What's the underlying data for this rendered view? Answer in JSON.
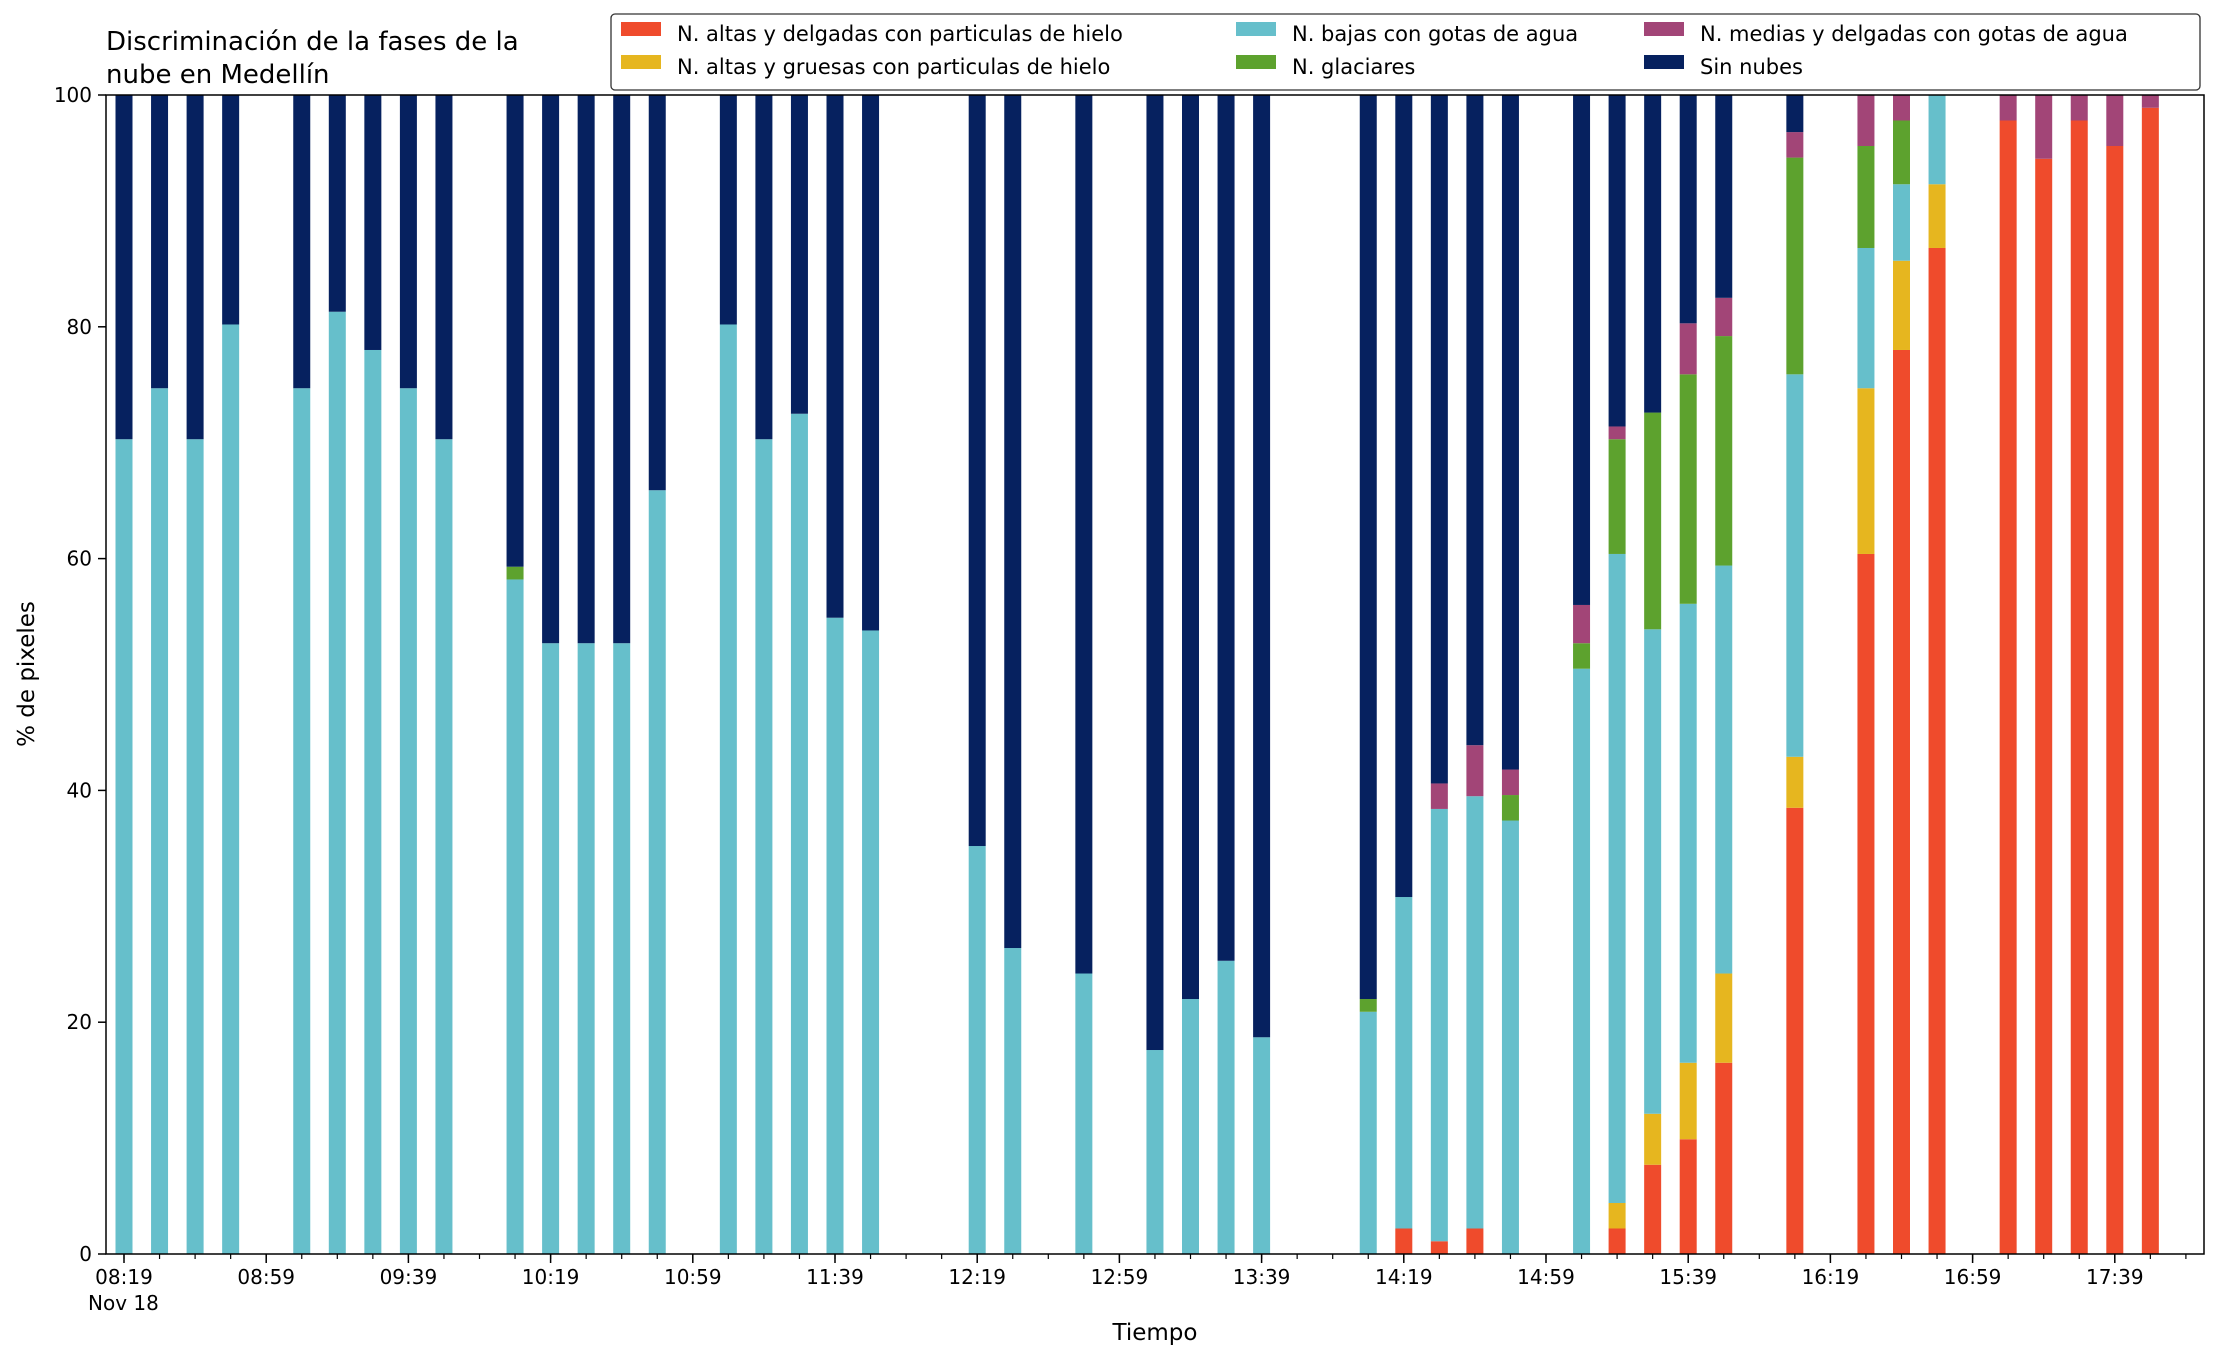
{
  "chart_data": {
    "type": "bar",
    "stacked": true,
    "title": "Discriminación de la fases de la\nnube en Medellín",
    "xlabel": "Tiempo",
    "ylabel": "% de pixeles",
    "ylim": [
      0,
      100
    ],
    "yticks": [
      0,
      20,
      40,
      60,
      80,
      100
    ],
    "x_date_label": "Nov 18",
    "x_tick_labels": [
      "08:19",
      "08:59",
      "09:39",
      "10:19",
      "10:59",
      "11:39",
      "12:19",
      "12:59",
      "13:39",
      "14:19",
      "14:59",
      "15:39",
      "16:19",
      "16:59",
      "17:39"
    ],
    "x_start": "08:19",
    "x_step_minutes": 10,
    "legend_position": "top-right",
    "series_order": [
      "hielo_delgadas",
      "hielo_gruesas",
      "bajas_agua",
      "glaciares",
      "medias_agua",
      "sin_nubes"
    ],
    "series_meta": [
      {
        "key": "hielo_delgadas",
        "name": "N. altas y delgadas con particulas de hielo",
        "color": "#ef4b2c"
      },
      {
        "key": "hielo_gruesas",
        "name": "N. altas y gruesas con particulas de hielo",
        "color": "#e6b61f"
      },
      {
        "key": "bajas_agua",
        "name": "N. bajas con gotas de agua",
        "color": "#66bfcb"
      },
      {
        "key": "glaciares",
        "name": "N. glaciares",
        "color": "#5da22e"
      },
      {
        "key": "medias_agua",
        "name": "N. medias y delgadas con gotas de agua",
        "color": "#a24577"
      },
      {
        "key": "sin_nubes",
        "name": "Sin nubes",
        "color": "#06215f"
      }
    ],
    "legend_columns": [
      [
        "hielo_delgadas",
        "hielo_gruesas"
      ],
      [
        "bajas_agua",
        "glaciares"
      ],
      [
        "medias_agua",
        "sin_nubes"
      ]
    ],
    "bars": [
      {
        "time": "08:19",
        "hielo_delgadas": 0,
        "hielo_gruesas": 0,
        "bajas_agua": 70.3,
        "glaciares": 0,
        "medias_agua": 0,
        "sin_nubes": 29.7
      },
      {
        "time": "08:29",
        "hielo_delgadas": 0,
        "hielo_gruesas": 0,
        "bajas_agua": 74.7,
        "glaciares": 0,
        "medias_agua": 0,
        "sin_nubes": 25.3
      },
      {
        "time": "08:39",
        "hielo_delgadas": 0,
        "hielo_gruesas": 0,
        "bajas_agua": 70.3,
        "glaciares": 0,
        "medias_agua": 0,
        "sin_nubes": 29.7
      },
      {
        "time": "08:49",
        "hielo_delgadas": 0,
        "hielo_gruesas": 0,
        "bajas_agua": 80.2,
        "glaciares": 0,
        "medias_agua": 0,
        "sin_nubes": 19.8
      },
      {
        "time": "09:09",
        "hielo_delgadas": 0,
        "hielo_gruesas": 0,
        "bajas_agua": 74.7,
        "glaciares": 0,
        "medias_agua": 0,
        "sin_nubes": 25.3
      },
      {
        "time": "09:19",
        "hielo_delgadas": 0,
        "hielo_gruesas": 0,
        "bajas_agua": 81.3,
        "glaciares": 0,
        "medias_agua": 0,
        "sin_nubes": 18.7
      },
      {
        "time": "09:29",
        "hielo_delgadas": 0,
        "hielo_gruesas": 0,
        "bajas_agua": 78.0,
        "glaciares": 0,
        "medias_agua": 0,
        "sin_nubes": 22.0
      },
      {
        "time": "09:39",
        "hielo_delgadas": 0,
        "hielo_gruesas": 0,
        "bajas_agua": 74.7,
        "glaciares": 0,
        "medias_agua": 0,
        "sin_nubes": 25.3
      },
      {
        "time": "09:49",
        "hielo_delgadas": 0,
        "hielo_gruesas": 0,
        "bajas_agua": 70.3,
        "glaciares": 0,
        "medias_agua": 0,
        "sin_nubes": 29.7
      },
      {
        "time": "10:09",
        "hielo_delgadas": 0,
        "hielo_gruesas": 0,
        "bajas_agua": 58.2,
        "glaciares": 1.1,
        "medias_agua": 0,
        "sin_nubes": 40.7
      },
      {
        "time": "10:19",
        "hielo_delgadas": 0,
        "hielo_gruesas": 0,
        "bajas_agua": 52.7,
        "glaciares": 0,
        "medias_agua": 0,
        "sin_nubes": 47.3
      },
      {
        "time": "10:29",
        "hielo_delgadas": 0,
        "hielo_gruesas": 0,
        "bajas_agua": 52.7,
        "glaciares": 0,
        "medias_agua": 0,
        "sin_nubes": 47.3
      },
      {
        "time": "10:39",
        "hielo_delgadas": 0,
        "hielo_gruesas": 0,
        "bajas_agua": 52.7,
        "glaciares": 0,
        "medias_agua": 0,
        "sin_nubes": 47.3
      },
      {
        "time": "10:49",
        "hielo_delgadas": 0,
        "hielo_gruesas": 0,
        "bajas_agua": 65.9,
        "glaciares": 0,
        "medias_agua": 0,
        "sin_nubes": 34.1
      },
      {
        "time": "11:09",
        "hielo_delgadas": 0,
        "hielo_gruesas": 0,
        "bajas_agua": 80.2,
        "glaciares": 0,
        "medias_agua": 0,
        "sin_nubes": 19.8
      },
      {
        "time": "11:19",
        "hielo_delgadas": 0,
        "hielo_gruesas": 0,
        "bajas_agua": 70.3,
        "glaciares": 0,
        "medias_agua": 0,
        "sin_nubes": 29.7
      },
      {
        "time": "11:29",
        "hielo_delgadas": 0,
        "hielo_gruesas": 0,
        "bajas_agua": 72.5,
        "glaciares": 0,
        "medias_agua": 0,
        "sin_nubes": 27.5
      },
      {
        "time": "11:39",
        "hielo_delgadas": 0,
        "hielo_gruesas": 0,
        "bajas_agua": 54.9,
        "glaciares": 0,
        "medias_agua": 0,
        "sin_nubes": 45.1
      },
      {
        "time": "11:49",
        "hielo_delgadas": 0,
        "hielo_gruesas": 0,
        "bajas_agua": 53.8,
        "glaciares": 0,
        "medias_agua": 0,
        "sin_nubes": 46.2
      },
      {
        "time": "12:19",
        "hielo_delgadas": 0,
        "hielo_gruesas": 0,
        "bajas_agua": 35.2,
        "glaciares": 0,
        "medias_agua": 0,
        "sin_nubes": 64.8
      },
      {
        "time": "12:29",
        "hielo_delgadas": 0,
        "hielo_gruesas": 0,
        "bajas_agua": 26.4,
        "glaciares": 0,
        "medias_agua": 0,
        "sin_nubes": 73.6
      },
      {
        "time": "12:49",
        "hielo_delgadas": 0,
        "hielo_gruesas": 0,
        "bajas_agua": 24.2,
        "glaciares": 0,
        "medias_agua": 0,
        "sin_nubes": 75.8
      },
      {
        "time": "13:09",
        "hielo_delgadas": 0,
        "hielo_gruesas": 0,
        "bajas_agua": 17.6,
        "glaciares": 0,
        "medias_agua": 0,
        "sin_nubes": 82.4
      },
      {
        "time": "13:19",
        "hielo_delgadas": 0,
        "hielo_gruesas": 0,
        "bajas_agua": 22.0,
        "glaciares": 0,
        "medias_agua": 0,
        "sin_nubes": 78.0
      },
      {
        "time": "13:29",
        "hielo_delgadas": 0,
        "hielo_gruesas": 0,
        "bajas_agua": 25.3,
        "glaciares": 0,
        "medias_agua": 0,
        "sin_nubes": 74.7
      },
      {
        "time": "13:39",
        "hielo_delgadas": 0,
        "hielo_gruesas": 0,
        "bajas_agua": 18.7,
        "glaciares": 0,
        "medias_agua": 0,
        "sin_nubes": 81.3
      },
      {
        "time": "14:09",
        "hielo_delgadas": 0,
        "hielo_gruesas": 0,
        "bajas_agua": 20.9,
        "glaciares": 1.1,
        "medias_agua": 0,
        "sin_nubes": 78.0
      },
      {
        "time": "14:19",
        "hielo_delgadas": 2.2,
        "hielo_gruesas": 0,
        "bajas_agua": 28.6,
        "glaciares": 0,
        "medias_agua": 0,
        "sin_nubes": 69.2
      },
      {
        "time": "14:29",
        "hielo_delgadas": 1.1,
        "hielo_gruesas": 0,
        "bajas_agua": 37.3,
        "glaciares": 0,
        "medias_agua": 2.2,
        "sin_nubes": 59.4
      },
      {
        "time": "14:39",
        "hielo_delgadas": 2.2,
        "hielo_gruesas": 0,
        "bajas_agua": 37.3,
        "glaciares": 0,
        "medias_agua": 4.4,
        "sin_nubes": 56.1
      },
      {
        "time": "14:49",
        "hielo_delgadas": 0,
        "hielo_gruesas": 0,
        "bajas_agua": 37.4,
        "glaciares": 2.2,
        "medias_agua": 2.2,
        "sin_nubes": 58.2
      },
      {
        "time": "15:09",
        "hielo_delgadas": 0,
        "hielo_gruesas": 0,
        "bajas_agua": 50.5,
        "glaciares": 2.2,
        "medias_agua": 3.3,
        "sin_nubes": 44.0
      },
      {
        "time": "15:19",
        "hielo_delgadas": 2.2,
        "hielo_gruesas": 2.2,
        "bajas_agua": 56.0,
        "glaciares": 9.9,
        "medias_agua": 1.1,
        "sin_nubes": 28.6
      },
      {
        "time": "15:29",
        "hielo_delgadas": 7.7,
        "hielo_gruesas": 4.4,
        "bajas_agua": 41.8,
        "glaciares": 18.7,
        "medias_agua": 0,
        "sin_nubes": 27.4
      },
      {
        "time": "15:39",
        "hielo_delgadas": 9.9,
        "hielo_gruesas": 6.6,
        "bajas_agua": 39.6,
        "glaciares": 19.8,
        "medias_agua": 4.4,
        "sin_nubes": 19.7
      },
      {
        "time": "15:49",
        "hielo_delgadas": 16.5,
        "hielo_gruesas": 7.7,
        "bajas_agua": 35.2,
        "glaciares": 19.8,
        "medias_agua": 3.3,
        "sin_nubes": 17.5
      },
      {
        "time": "16:09",
        "hielo_delgadas": 38.5,
        "hielo_gruesas": 4.4,
        "bajas_agua": 33.0,
        "glaciares": 18.7,
        "medias_agua": 2.2,
        "sin_nubes": 3.2
      },
      {
        "time": "16:29",
        "hielo_delgadas": 60.4,
        "hielo_gruesas": 14.3,
        "bajas_agua": 12.1,
        "glaciares": 8.8,
        "medias_agua": 4.4,
        "sin_nubes": 0
      },
      {
        "time": "16:39",
        "hielo_delgadas": 78.0,
        "hielo_gruesas": 7.7,
        "bajas_agua": 6.6,
        "glaciares": 5.5,
        "medias_agua": 2.2,
        "sin_nubes": 0
      },
      {
        "time": "16:49",
        "hielo_delgadas": 86.8,
        "hielo_gruesas": 5.5,
        "bajas_agua": 7.7,
        "glaciares": 0,
        "medias_agua": 0,
        "sin_nubes": 0
      },
      {
        "time": "17:09",
        "hielo_delgadas": 97.8,
        "hielo_gruesas": 0,
        "bajas_agua": 0,
        "glaciares": 0,
        "medias_agua": 2.2,
        "sin_nubes": 0
      },
      {
        "time": "17:19",
        "hielo_delgadas": 94.5,
        "hielo_gruesas": 0,
        "bajas_agua": 0,
        "glaciares": 0,
        "medias_agua": 5.5,
        "sin_nubes": 0
      },
      {
        "time": "17:29",
        "hielo_delgadas": 97.8,
        "hielo_gruesas": 0,
        "bajas_agua": 0,
        "glaciares": 0,
        "medias_agua": 2.2,
        "sin_nubes": 0
      },
      {
        "time": "17:39",
        "hielo_delgadas": 95.6,
        "hielo_gruesas": 0,
        "bajas_agua": 0,
        "glaciares": 0,
        "medias_agua": 4.4,
        "sin_nubes": 0
      },
      {
        "time": "17:49",
        "hielo_delgadas": 98.9,
        "hielo_gruesas": 0,
        "bajas_agua": 0,
        "glaciares": 0,
        "medias_agua": 1.1,
        "sin_nubes": 0
      }
    ]
  }
}
